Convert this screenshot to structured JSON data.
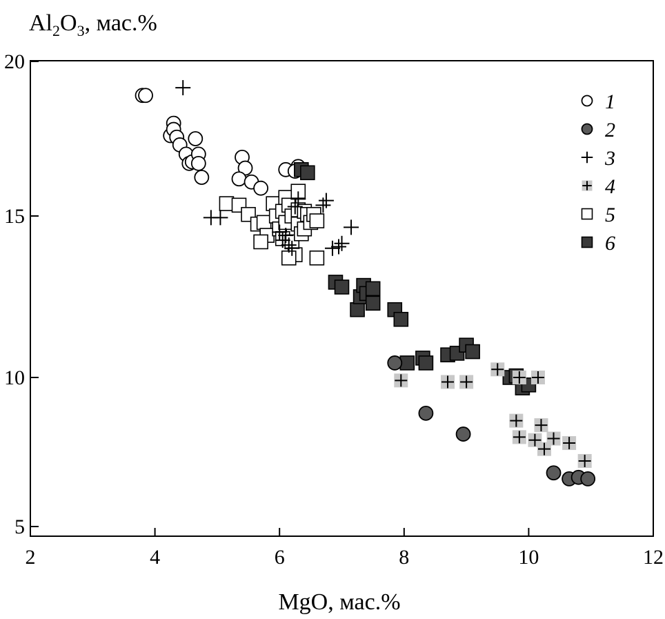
{
  "chart_data": {
    "type": "scatter",
    "title": "",
    "ylabel": {
      "main": "Al",
      "sub1": "2",
      "mid": "O",
      "sub2": "3",
      "suffix": ", мас.%"
    },
    "xlabel": "MgO, мас.%",
    "xlim": [
      2,
      12
    ],
    "ylim": [
      5,
      20
    ],
    "x_ticks": [
      2,
      4,
      6,
      8,
      10,
      12
    ],
    "y_ticks": [
      5,
      10,
      15,
      20
    ],
    "x_tick_labels": [
      "2",
      "4",
      "6",
      "8",
      "10",
      "12"
    ],
    "y_tick_labels": [
      "5",
      "10",
      "15",
      "20"
    ],
    "legend_position": "top-right",
    "series": [
      {
        "name": "1",
        "marker": "open-circle",
        "points": [
          [
            3.8,
            18.9
          ],
          [
            3.85,
            18.9
          ],
          [
            4.25,
            17.6
          ],
          [
            4.3,
            18.0
          ],
          [
            4.3,
            17.8
          ],
          [
            4.35,
            17.55
          ],
          [
            4.4,
            17.3
          ],
          [
            4.5,
            17.0
          ],
          [
            4.55,
            16.7
          ],
          [
            4.6,
            16.75
          ],
          [
            4.65,
            17.5
          ],
          [
            4.7,
            17.0
          ],
          [
            4.7,
            16.7
          ],
          [
            4.75,
            16.25
          ],
          [
            5.4,
            16.9
          ],
          [
            5.45,
            16.55
          ],
          [
            5.35,
            16.2
          ],
          [
            5.55,
            16.1
          ],
          [
            5.7,
            15.9
          ],
          [
            6.1,
            16.5
          ],
          [
            6.3,
            16.6
          ],
          [
            6.25,
            16.45
          ]
        ]
      },
      {
        "name": "2",
        "marker": "filled-circle-gray",
        "points": [
          [
            7.85,
            10.45
          ],
          [
            8.35,
            8.8
          ],
          [
            8.95,
            8.1
          ],
          [
            10.4,
            6.8
          ],
          [
            10.65,
            6.6
          ],
          [
            10.8,
            6.65
          ],
          [
            10.95,
            6.6
          ]
        ]
      },
      {
        "name": "3",
        "marker": "plus",
        "points": [
          [
            4.45,
            19.15
          ],
          [
            4.9,
            14.95
          ],
          [
            5.05,
            14.95
          ],
          [
            6.0,
            14.5
          ],
          [
            6.05,
            14.25
          ],
          [
            6.1,
            14.4
          ],
          [
            6.15,
            14.1
          ],
          [
            6.2,
            14.0
          ],
          [
            6.25,
            15.3
          ],
          [
            6.3,
            15.55
          ],
          [
            6.7,
            15.35
          ],
          [
            6.75,
            15.5
          ],
          [
            6.85,
            14.0
          ],
          [
            6.95,
            14.05
          ],
          [
            7.0,
            14.15
          ],
          [
            7.15,
            14.65
          ]
        ]
      },
      {
        "name": "4",
        "marker": "plus-on-gray-square",
        "points": [
          [
            7.95,
            9.9
          ],
          [
            8.7,
            9.85
          ],
          [
            9.0,
            9.85
          ],
          [
            9.5,
            10.25
          ],
          [
            9.85,
            10.0
          ],
          [
            10.15,
            10.0
          ],
          [
            9.8,
            8.55
          ],
          [
            9.85,
            8.0
          ],
          [
            10.1,
            7.9
          ],
          [
            10.2,
            8.4
          ],
          [
            10.25,
            7.6
          ],
          [
            10.4,
            7.95
          ],
          [
            10.65,
            7.8
          ],
          [
            10.9,
            7.2
          ]
        ]
      },
      {
        "name": "5",
        "marker": "open-square",
        "points": [
          [
            5.15,
            15.4
          ],
          [
            5.35,
            15.35
          ],
          [
            5.5,
            15.05
          ],
          [
            5.65,
            14.75
          ],
          [
            5.75,
            14.8
          ],
          [
            5.8,
            14.4
          ],
          [
            5.7,
            14.2
          ],
          [
            5.9,
            15.4
          ],
          [
            5.95,
            15.0
          ],
          [
            6.0,
            14.6
          ],
          [
            6.05,
            14.3
          ],
          [
            6.05,
            15.15
          ],
          [
            6.1,
            14.8
          ],
          [
            6.1,
            15.6
          ],
          [
            6.15,
            15.35
          ],
          [
            6.2,
            15.0
          ],
          [
            6.2,
            14.2
          ],
          [
            6.25,
            13.8
          ],
          [
            6.3,
            14.75
          ],
          [
            6.3,
            15.2
          ],
          [
            6.35,
            14.45
          ],
          [
            6.4,
            15.15
          ],
          [
            6.4,
            14.6
          ],
          [
            6.45,
            15.05
          ],
          [
            6.5,
            14.8
          ],
          [
            6.55,
            15.05
          ],
          [
            6.6,
            14.85
          ],
          [
            6.6,
            13.7
          ],
          [
            6.3,
            15.8
          ],
          [
            6.15,
            13.7
          ]
        ]
      },
      {
        "name": "6",
        "marker": "filled-square-dark",
        "points": [
          [
            6.35,
            16.5
          ],
          [
            6.45,
            16.4
          ],
          [
            6.9,
            12.95
          ],
          [
            7.0,
            12.8
          ],
          [
            7.25,
            12.1
          ],
          [
            7.3,
            12.5
          ],
          [
            7.35,
            12.85
          ],
          [
            7.4,
            12.6
          ],
          [
            7.5,
            12.75
          ],
          [
            7.5,
            12.3
          ],
          [
            7.85,
            12.1
          ],
          [
            7.95,
            11.8
          ],
          [
            8.05,
            10.45
          ],
          [
            8.3,
            10.6
          ],
          [
            8.35,
            10.45
          ],
          [
            8.7,
            10.7
          ],
          [
            8.85,
            10.75
          ],
          [
            9.0,
            11.0
          ],
          [
            9.1,
            10.8
          ],
          [
            9.7,
            10.0
          ],
          [
            9.8,
            10.05
          ],
          [
            9.9,
            9.65
          ],
          [
            10.0,
            9.75
          ]
        ]
      }
    ]
  }
}
